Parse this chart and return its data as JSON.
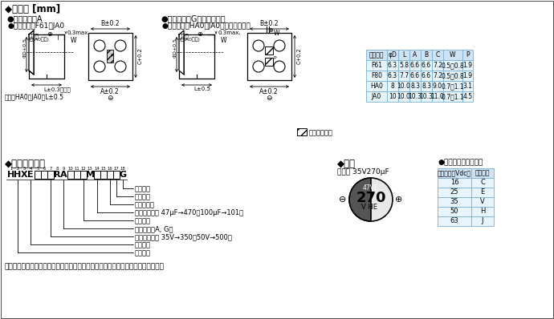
{
  "table1_headers": [
    "尺寸代码",
    "φD",
    "L",
    "A",
    "B",
    "C",
    "W",
    "P"
  ],
  "table1_rows": [
    [
      "F61",
      "6.3",
      "5.8",
      "6.6",
      "6.6",
      "7.2",
      "0.5～0.8",
      "1.9"
    ],
    [
      "F80",
      "6.3",
      "7.7",
      "6.6",
      "6.6",
      "7.2",
      "0.5～0.8",
      "1.9"
    ],
    [
      "HA0",
      "8",
      "10.0",
      "8.3",
      "8.3",
      "9.0",
      "0.7～1.1",
      "3.1"
    ],
    [
      "JA0",
      "10",
      "10.0",
      "10.3",
      "10.3",
      "11.0",
      "0.7～1.1",
      "4.5"
    ]
  ],
  "table2_headers": [
    "额定电压（Vdc）",
    "标示符号"
  ],
  "table2_rows": [
    [
      "16",
      "C"
    ],
    [
      "25",
      "E"
    ],
    [
      "35",
      "V"
    ],
    [
      "50",
      "H"
    ],
    [
      "63",
      "J"
    ]
  ],
  "table_header_color": "#cfe2f3",
  "table_row_color": "#e8f4fb",
  "table_border_color": "#7ab0d4",
  "bg_color": "#ffffff"
}
